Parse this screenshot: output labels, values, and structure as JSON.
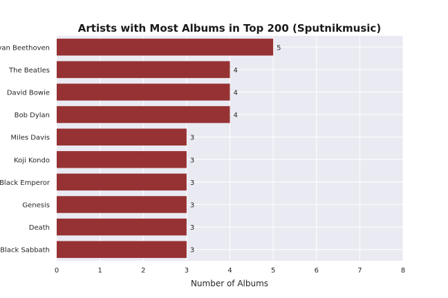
{
  "chart_data": {
    "type": "bar",
    "orientation": "horizontal",
    "title": "Artists with Most Albums in Top 200 (Sputnikmusic)",
    "xlabel": "Number of Albums",
    "ylabel": "",
    "categories": [
      "Ludwig van Beethoven",
      "The Beatles",
      "David Bowie",
      "Bob Dylan",
      "Miles Davis",
      "Koji Kondo",
      "Godspeed You! Black Emperor",
      "Genesis",
      "Death",
      "Black Sabbath"
    ],
    "values": [
      5,
      4,
      4,
      4,
      3,
      3,
      3,
      3,
      3,
      3
    ],
    "xlim": [
      0,
      8
    ],
    "xticks": [
      0,
      1,
      2,
      3,
      4,
      5,
      6,
      7,
      8
    ],
    "grid": true,
    "legend": "none",
    "colors": {
      "bar": "#963233",
      "background": "#eaeaf2",
      "grid": "#ffffff"
    }
  }
}
